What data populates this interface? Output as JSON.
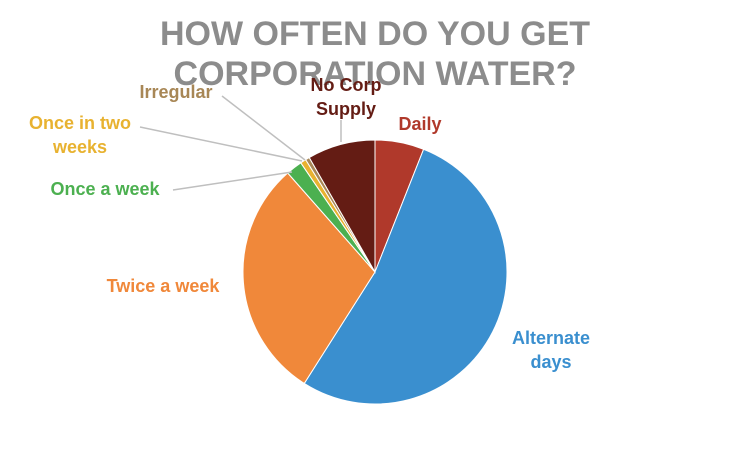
{
  "chart_data": {
    "type": "pie",
    "title": "HOW OFTEN DO YOU GET CORPORATION WATER?",
    "categories": [
      "Daily",
      "Alternate days",
      "Twice a week",
      "Once a week",
      "Once in two weeks",
      "Irregular",
      "No Corp Supply"
    ],
    "values": [
      6,
      53,
      29.5,
      2,
      0.7,
      0.5,
      8.3
    ],
    "colors": [
      "#b0392b",
      "#3a8fcf",
      "#f0883a",
      "#4cb050",
      "#e8b230",
      "#a88756",
      "#641c14"
    ]
  }
}
